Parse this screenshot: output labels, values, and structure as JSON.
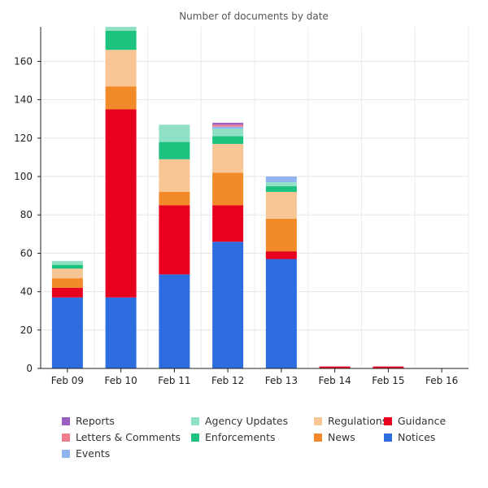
{
  "chart_data": {
    "type": "bar",
    "stacked": true,
    "title": "Number of documents by date",
    "xlabel": "",
    "ylabel": "",
    "ylim": [
      0,
      178
    ],
    "yticks": [
      0,
      20,
      40,
      60,
      80,
      100,
      120,
      140,
      160
    ],
    "grid": true,
    "legend_position": "bottom",
    "categories": [
      "Feb 09",
      "Feb 10",
      "Feb 11",
      "Feb 12",
      "Feb 13",
      "Feb 14",
      "Feb 15",
      "Feb 16"
    ],
    "series": [
      {
        "name": "Notices",
        "color": "#2d6de0",
        "values": [
          37,
          37,
          49,
          66,
          57,
          0,
          0,
          0
        ]
      },
      {
        "name": "Guidance",
        "color": "#e8001f",
        "values": [
          5,
          98,
          36,
          19,
          4,
          1,
          1,
          0
        ]
      },
      {
        "name": "News",
        "color": "#f28a2a",
        "values": [
          5,
          12,
          7,
          17,
          17,
          0,
          0,
          0
        ]
      },
      {
        "name": "Regulations",
        "color": "#f8c594",
        "values": [
          5,
          19,
          17,
          15,
          14,
          0,
          0,
          0
        ]
      },
      {
        "name": "Enforcements",
        "color": "#1cc37f",
        "values": [
          2,
          10,
          9,
          4,
          3,
          0,
          0,
          0
        ]
      },
      {
        "name": "Agency Updates",
        "color": "#8fe0c5",
        "values": [
          2,
          3,
          9,
          4,
          2,
          0,
          0,
          0
        ]
      },
      {
        "name": "Events",
        "color": "#8fb4ee",
        "values": [
          0,
          0,
          0,
          1,
          3,
          0,
          0,
          0
        ]
      },
      {
        "name": "Letters & Comments",
        "color": "#ef7f8c",
        "values": [
          0,
          0,
          0,
          1,
          0,
          0,
          0,
          0
        ]
      },
      {
        "name": "Reports",
        "color": "#9b5fc4",
        "values": [
          0,
          0,
          0,
          1,
          0,
          0,
          0,
          0
        ]
      }
    ],
    "legend_order": [
      "Reports",
      "Agency Updates",
      "Regulations",
      "Guidance",
      "Letters & Comments",
      "Enforcements",
      "News",
      "Notices",
      "Events"
    ]
  }
}
